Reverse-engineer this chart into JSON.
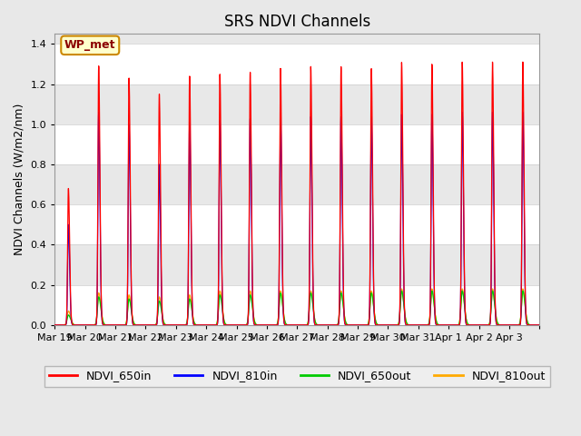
{
  "title": "SRS NDVI Channels",
  "ylabel": "NDVI Channels (W/m2/nm)",
  "xlabel": "",
  "annotation": "WP_met",
  "ylim": [
    0,
    1.45
  ],
  "yticks": [
    0.0,
    0.2,
    0.4,
    0.6,
    0.8,
    1.0,
    1.2,
    1.4
  ],
  "legend_labels": [
    "NDVI_650in",
    "NDVI_810in",
    "NDVI_650out",
    "NDVI_810out"
  ],
  "legend_colors": [
    "#ff0000",
    "#0000ff",
    "#00cc00",
    "#ffaa00"
  ],
  "num_days": 16,
  "x_tick_labels": [
    "Mar 19",
    "Mar 20",
    "Mar 21",
    "Mar 22",
    "Mar 23",
    "Mar 24",
    "Mar 25",
    "Mar 26",
    "Mar 27",
    "Mar 28",
    "Mar 29",
    "Mar 30",
    "Mar 31",
    "Apr 1",
    "Apr 2",
    "Apr 3"
  ],
  "peak_heights_650in": [
    0.68,
    1.29,
    1.23,
    1.15,
    1.24,
    1.25,
    1.26,
    1.28,
    1.29,
    1.29,
    1.28,
    1.31,
    1.3,
    1.31,
    1.31,
    1.31
  ],
  "peak_heights_810in": [
    0.5,
    1.06,
    1.0,
    0.8,
    1.01,
    1.02,
    1.03,
    1.04,
    1.04,
    1.04,
    1.04,
    1.05,
    1.05,
    1.06,
    1.06,
    1.06
  ],
  "peak_heights_650out": [
    0.05,
    0.14,
    0.13,
    0.12,
    0.13,
    0.15,
    0.15,
    0.16,
    0.16,
    0.16,
    0.16,
    0.17,
    0.17,
    0.17,
    0.17,
    0.17
  ],
  "peak_heights_810out": [
    0.07,
    0.16,
    0.15,
    0.14,
    0.15,
    0.17,
    0.17,
    0.17,
    0.17,
    0.17,
    0.17,
    0.18,
    0.18,
    0.18,
    0.18,
    0.18
  ],
  "background_color": "#e8e8e8",
  "grid_band_color": "#ffffff",
  "grid_line_color": "#cccccc",
  "title_fontsize": 12,
  "label_fontsize": 9,
  "tick_fontsize": 8,
  "legend_fontsize": 9,
  "linewidth_in": 0.9,
  "linewidth_out": 0.9
}
